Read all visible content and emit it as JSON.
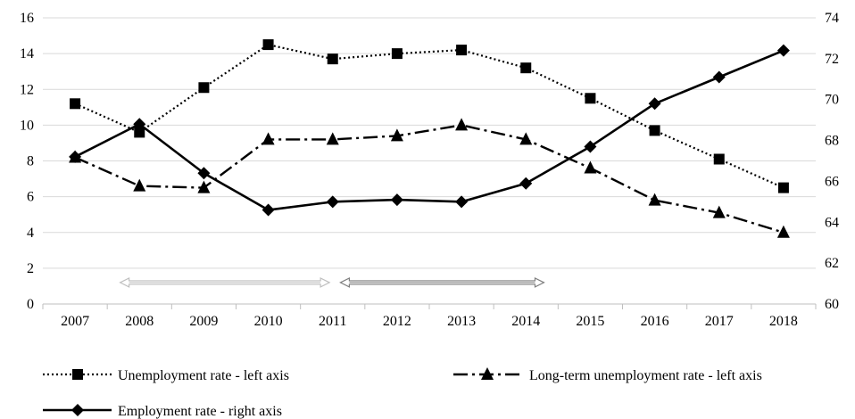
{
  "chart_data": {
    "type": "line",
    "categories": [
      "2007",
      "2008",
      "2009",
      "2010",
      "2011",
      "2012",
      "2013",
      "2014",
      "2015",
      "2016",
      "2017",
      "2018"
    ],
    "left_axis": {
      "ylim": [
        0,
        16
      ],
      "ticks": [
        "0",
        "2",
        "4",
        "6",
        "8",
        "10",
        "12",
        "14",
        "16"
      ]
    },
    "right_axis": {
      "ylim": [
        60,
        74
      ],
      "ticks": [
        "60",
        "62",
        "64",
        "66",
        "68",
        "70",
        "72",
        "74"
      ]
    },
    "grid": true,
    "legend_position": "bottom",
    "series": [
      {
        "name": "Unemployment rate - left axis",
        "axis": "left",
        "style": "dotted",
        "marker": "square",
        "values": [
          11.2,
          9.6,
          12.1,
          14.5,
          13.7,
          14.0,
          14.2,
          13.2,
          11.5,
          9.7,
          8.1,
          6.5
        ]
      },
      {
        "name": "Long-term unemployment rate - left axis",
        "axis": "left",
        "style": "dashdot",
        "marker": "triangle",
        "values": [
          8.2,
          6.6,
          6.5,
          9.2,
          9.2,
          9.4,
          10.0,
          9.2,
          7.6,
          5.8,
          5.1,
          4.0
        ]
      },
      {
        "name": "Employment rate - right axis",
        "axis": "right",
        "style": "solid",
        "marker": "diamond",
        "values": [
          67.2,
          68.8,
          66.4,
          64.6,
          65.0,
          65.1,
          65.0,
          65.9,
          67.7,
          69.8,
          71.1,
          72.4
        ]
      }
    ],
    "period_arrows": [
      {
        "from": "2008",
        "to": "2011",
        "color": "#bfbfbf"
      },
      {
        "from": "2011",
        "to": "2014",
        "color": "#7f7f7f"
      }
    ]
  }
}
